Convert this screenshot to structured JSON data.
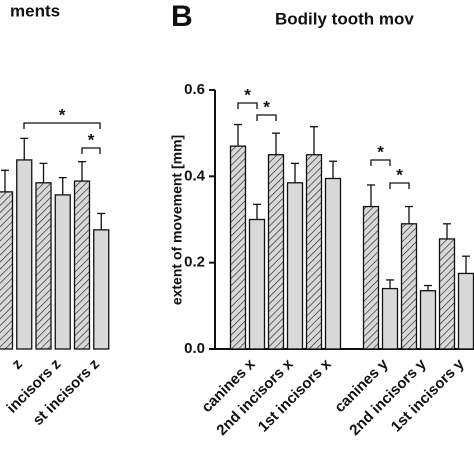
{
  "chart_data": [
    {
      "type": "bar",
      "title": "ments",
      "categories": [
        "z",
        "incisors z",
        "st incisors z"
      ],
      "series": [
        {
          "color": "#d9d9d9",
          "hatch": true,
          "values": [
            0.364,
            0.385,
            0.389
          ],
          "errors": [
            0.05,
            0.045,
            0.045
          ]
        },
        {
          "color": "#d9d9d9",
          "hatch": false,
          "values": [
            0.438,
            0.357,
            0.276
          ],
          "errors": [
            0.05,
            0.04,
            0.038
          ]
        }
      ],
      "annotations": [
        "*",
        "*"
      ],
      "ylim": [
        0,
        0.6
      ]
    },
    {
      "type": "bar",
      "panel_label": "B",
      "title": "Bodily tooth mov",
      "ylabel": "extent of movement [mm]",
      "categories": [
        "canines x",
        "2nd incisors x",
        "1st incisors x",
        "canines y",
        "2nd incisors y",
        "1st incisors y"
      ],
      "series": [
        {
          "color": "#d9d9d9",
          "hatch": true,
          "values": [
            0.47,
            0.45,
            0.45,
            0.33,
            0.29,
            0.255
          ],
          "errors": [
            0.05,
            0.05,
            0.065,
            0.05,
            0.04,
            0.035
          ]
        },
        {
          "color": "#d9d9d9",
          "hatch": false,
          "values": [
            0.3,
            0.385,
            0.395,
            0.14,
            0.135,
            0.175
          ],
          "errors": [
            0.035,
            0.045,
            0.04,
            0.02,
            0.012,
            0.04
          ]
        }
      ],
      "annotations": [
        "*",
        "*",
        "*",
        "*"
      ],
      "ylim": [
        0,
        0.6
      ],
      "yticks": [
        {
          "value": 0,
          "label": "0.0"
        },
        0.2,
        0.4,
        0.6
      ]
    }
  ]
}
